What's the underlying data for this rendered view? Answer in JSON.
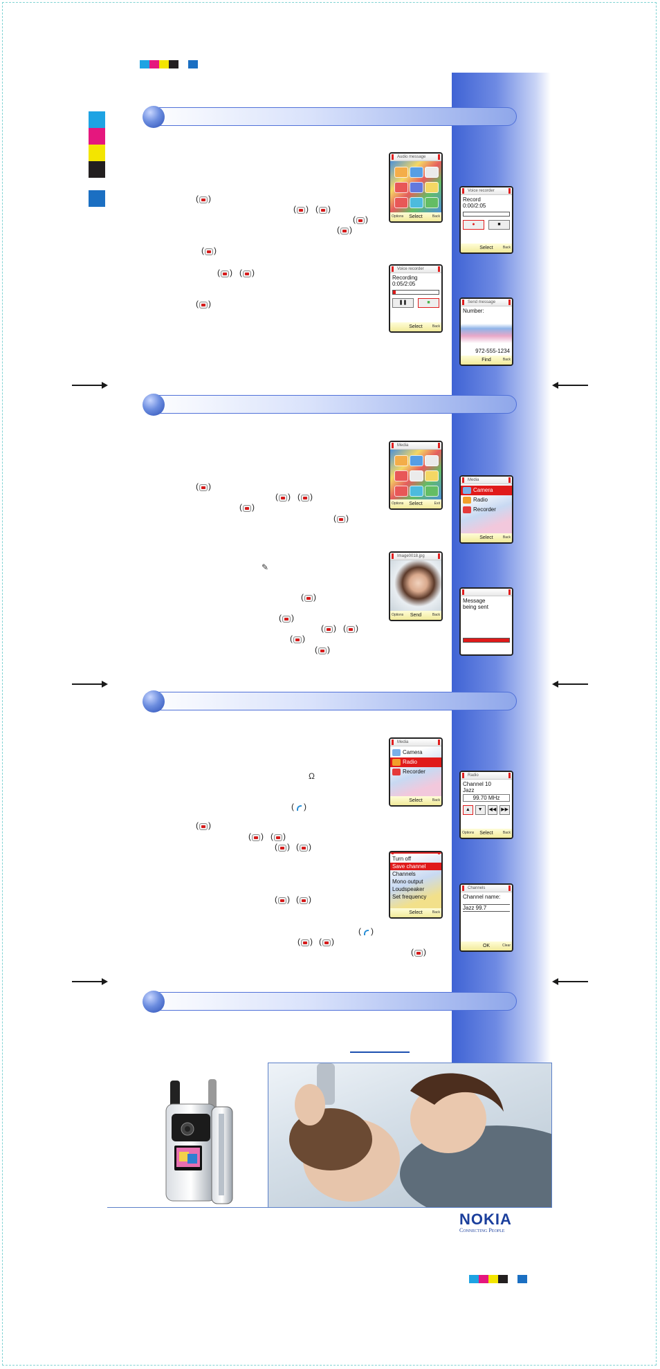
{
  "registration": {
    "colors": [
      "#1ea3e3",
      "#e5177e",
      "#f3e500",
      "#231f20",
      "#ffffff",
      "#1b6fc2"
    ]
  },
  "screens": {
    "audio_message": {
      "title": "Audio message",
      "indicator": "10",
      "softkeys": {
        "left": "Options",
        "mid": "Select",
        "right": "Back"
      }
    },
    "voice_recorder_record": {
      "title": "Voice recorder",
      "line1": "Record",
      "line2": "0:00/2:05",
      "softkeys": {
        "left": "",
        "mid": "Select",
        "right": "Back"
      }
    },
    "voice_recorder_recording": {
      "title": "Voice recorder",
      "line1": "Recording",
      "line2": "0:05/2:05",
      "softkeys": {
        "left": "",
        "mid": "Select",
        "right": "Back"
      }
    },
    "send_message": {
      "title": "Send message",
      "label": "Number:",
      "number": "972-555-1234",
      "softkeys": {
        "left": "",
        "mid": "Find",
        "right": "Back"
      }
    },
    "media_grid": {
      "title": "Media",
      "indicator": "4",
      "softkeys": {
        "left": "Options",
        "mid": "Select",
        "right": "Exit"
      }
    },
    "media_menu_camera": {
      "title": "Media",
      "indicator": "1",
      "items": [
        "Camera",
        "Radio",
        "Recorder"
      ],
      "softkeys": {
        "left": "",
        "mid": "Select",
        "right": "Back"
      }
    },
    "image_preview": {
      "title": "Image0018.jpg",
      "softkeys": {
        "left": "Options",
        "mid": "Send",
        "right": "Back"
      }
    },
    "message_sending": {
      "line1": "Message",
      "line2": "being sent"
    },
    "media_menu_radio": {
      "title": "Media",
      "indicator": "2",
      "items": [
        "Camera",
        "Radio",
        "Recorder"
      ],
      "softkeys": {
        "left": "",
        "mid": "Select",
        "right": "Back"
      }
    },
    "radio": {
      "title": "Radio",
      "line1": "Channel 10",
      "line2": "Jazz",
      "frequency": "99.70 MHz",
      "softkeys": {
        "left": "Options",
        "mid": "Select",
        "right": "Back"
      }
    },
    "radio_options": {
      "items": [
        "Turn off",
        "Save channel",
        "Channels",
        "Mono output",
        "Loudspeaker",
        "Set frequency"
      ],
      "softkeys": {
        "left": "",
        "mid": "Select",
        "right": "Back"
      }
    },
    "channel_name": {
      "title": "Channels",
      "label": "Channel name:",
      "value": "Jazz 99.7",
      "softkeys": {
        "left": "",
        "mid": "OK",
        "right": "Clear"
      }
    }
  },
  "brand": {
    "word": "NOKIA",
    "tagline": "Connecting People",
    "color": "#1b3f9c"
  },
  "icons": {
    "section_bullet": "blue-orb",
    "key": "selection-key-icon",
    "call": "call-key-icon",
    "headset": "headset-icon",
    "pen": "edit-icon"
  }
}
